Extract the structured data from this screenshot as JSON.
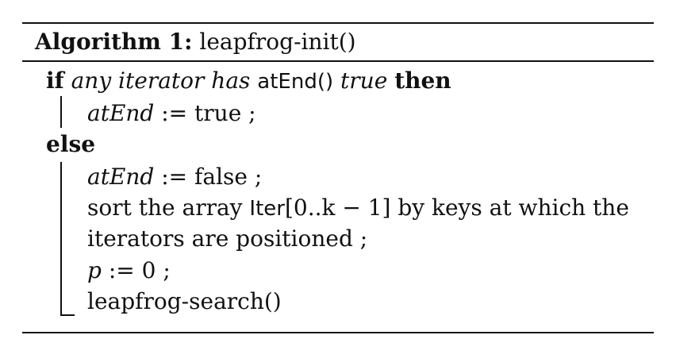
{
  "algorithm": {
    "label": "Algorithm 1:",
    "name": "leapfrog-init()"
  },
  "lines": {
    "if_kw": "if",
    "if_cond_a": "any iterator has",
    "if_call": "atEnd()",
    "if_cond_b": "true",
    "then_kw": "then",
    "then_var": "atEnd",
    "then_rest": ":= true ;",
    "else_kw": "else",
    "else_1_var": "atEnd",
    "else_1_rest": ":= false ;",
    "else_2_a": "sort the array",
    "else_2_iter": "Iter",
    "else_2_b": "[0..k − 1] by keys at which the",
    "else_3": "iterators are positioned ;",
    "else_4_var": "p",
    "else_4_rest": ":= 0 ;",
    "else_5": "leapfrog-search()"
  }
}
